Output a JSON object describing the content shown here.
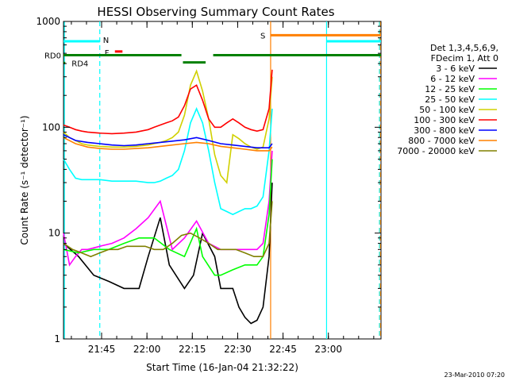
{
  "chart_data": {
    "type": "line",
    "title": "HESSI Observing Summary Count Rates",
    "xlabel": "Start Time (16-Jan-04 21:32:22)",
    "ylabel": "Count Rate (s⁻¹ detector⁻¹)",
    "yscale": "log",
    "ylim": [
      1,
      1000
    ],
    "xlim_minutes_after_21:32:22": [
      0,
      105
    ],
    "x_ticks": [
      {
        "label": "21:45",
        "t": 12.6
      },
      {
        "label": "22:00",
        "t": 27.6
      },
      {
        "label": "22:15",
        "t": 42.6
      },
      {
        "label": "22:30",
        "t": 57.6
      },
      {
        "label": "22:45",
        "t": 72.6
      },
      {
        "label": "23:00",
        "t": 87.6
      }
    ],
    "y_ticks": [
      {
        "label": "1",
        "v": 1
      },
      {
        "label": "10",
        "v": 10
      },
      {
        "label": "100",
        "v": 100
      },
      {
        "label": "1000",
        "v": 1000
      }
    ],
    "legend_header": [
      "Det 1,3,4,5,6,9,",
      "FDecim 1, Att 0"
    ],
    "legend_position": "right",
    "series": [
      {
        "name": "3 - 6 keV",
        "color": "#000000",
        "x": [
          0,
          5,
          10,
          15,
          20,
          25,
          28,
          32,
          35,
          40,
          43,
          46,
          50,
          52,
          56,
          58,
          60,
          62,
          64,
          66,
          68,
          69
        ],
        "y": [
          8,
          6,
          4,
          3.5,
          3,
          3,
          6,
          14,
          5,
          3,
          4,
          10,
          6,
          3,
          3,
          2,
          1.6,
          1.4,
          1.5,
          2,
          6,
          30
        ]
      },
      {
        "name": "6 - 12 keV",
        "color": "#ff00ff",
        "x": [
          0,
          2,
          4,
          6,
          8,
          12,
          16,
          20,
          24,
          28,
          32,
          36,
          40,
          44,
          48,
          52,
          56,
          60,
          64,
          66,
          68,
          69
        ],
        "y": [
          10,
          5,
          6,
          7,
          7,
          7.5,
          8,
          9,
          11,
          14,
          20,
          7,
          9,
          13,
          8,
          7,
          7,
          7,
          7,
          8,
          20,
          60
        ]
      },
      {
        "name": "12 - 25 keV",
        "color": "#00ff00",
        "x": [
          0,
          5,
          10,
          15,
          20,
          25,
          30,
          35,
          40,
          44,
          46,
          50,
          52,
          56,
          60,
          64,
          66,
          68,
          69
        ],
        "y": [
          7,
          6.5,
          7,
          7,
          8,
          9,
          9,
          7,
          6,
          11,
          6,
          4,
          4,
          4.5,
          5,
          5,
          6,
          15,
          50
        ]
      },
      {
        "name": "25 - 50 keV",
        "color": "#00ffff",
        "x": [
          0,
          2,
          4,
          6,
          8,
          12,
          16,
          20,
          24,
          28,
          30,
          32,
          34,
          36,
          38,
          40,
          42,
          44,
          46,
          48,
          50,
          52,
          54,
          56,
          58,
          60,
          62,
          64,
          66,
          68,
          69
        ],
        "y": [
          50,
          40,
          33,
          32,
          32,
          32,
          31,
          31,
          31,
          30,
          30,
          31,
          33,
          35,
          40,
          60,
          110,
          150,
          110,
          60,
          30,
          17,
          16,
          15,
          16,
          17,
          17,
          18,
          22,
          60,
          150
        ]
      },
      {
        "name": "50 - 100 keV",
        "color": "#d0d000",
        "x": [
          0,
          2,
          4,
          6,
          8,
          12,
          16,
          20,
          24,
          28,
          30,
          32,
          34,
          36,
          38,
          40,
          42,
          44,
          46,
          48,
          50,
          52,
          54,
          56,
          58,
          60,
          62,
          64,
          66,
          68,
          69
        ],
        "y": [
          90,
          80,
          75,
          70,
          68,
          66,
          65,
          65,
          66,
          68,
          70,
          72,
          75,
          80,
          90,
          130,
          250,
          340,
          220,
          120,
          55,
          35,
          30,
          85,
          78,
          70,
          65,
          62,
          65,
          120,
          300
        ]
      },
      {
        "name": "100 - 300 keV",
        "color": "#ff0000",
        "x": [
          0,
          2,
          4,
          6,
          8,
          12,
          16,
          20,
          24,
          28,
          30,
          32,
          34,
          36,
          38,
          40,
          42,
          44,
          46,
          48,
          50,
          52,
          54,
          56,
          58,
          60,
          62,
          64,
          66,
          68,
          69
        ],
        "y": [
          105,
          100,
          95,
          92,
          90,
          88,
          87,
          88,
          90,
          95,
          100,
          105,
          110,
          115,
          125,
          160,
          230,
          250,
          180,
          120,
          100,
          100,
          110,
          120,
          110,
          100,
          95,
          92,
          95,
          150,
          350
        ]
      },
      {
        "name": "300 - 800 keV",
        "color": "#0000ff",
        "x": [
          0,
          4,
          8,
          12,
          16,
          20,
          24,
          28,
          32,
          36,
          40,
          44,
          48,
          52,
          56,
          60,
          64,
          66,
          68,
          69
        ],
        "y": [
          85,
          75,
          72,
          70,
          68,
          67,
          68,
          70,
          72,
          74,
          76,
          80,
          75,
          70,
          68,
          66,
          64,
          64,
          64,
          70
        ]
      },
      {
        "name": "800 - 7000 keV",
        "color": "#ff8000",
        "x": [
          0,
          4,
          8,
          12,
          16,
          20,
          24,
          28,
          32,
          36,
          40,
          44,
          48,
          52,
          56,
          60,
          64,
          66,
          68,
          69
        ],
        "y": [
          80,
          70,
          65,
          63,
          62,
          62,
          63,
          64,
          66,
          68,
          70,
          72,
          70,
          66,
          64,
          62,
          60,
          60,
          60,
          65
        ]
      },
      {
        "name": "7000 - 20000 keV",
        "color": "#808000",
        "x": [
          0,
          3,
          6,
          9,
          12,
          15,
          18,
          21,
          24,
          27,
          30,
          33,
          36,
          39,
          42,
          45,
          48,
          51,
          54,
          57,
          60,
          63,
          66,
          68,
          69
        ],
        "y": [
          8,
          7,
          6.5,
          6,
          6.5,
          7,
          7,
          7.5,
          7.5,
          7.5,
          7,
          7,
          8,
          9.5,
          10,
          9,
          8,
          7,
          7,
          7,
          6.5,
          6,
          6,
          8,
          20
        ]
      }
    ],
    "annotations": [
      {
        "label": "N",
        "color": "#00ffff",
        "x": [
          0,
          12
        ],
        "y": 650
      },
      {
        "label": "F",
        "color": "#ff0000",
        "x": [
          17,
          19.5
        ],
        "y": 520
      },
      {
        "label": "S",
        "color": "#ff8000",
        "x": [
          68.5,
          105
        ],
        "y": 740
      },
      {
        "label": "",
        "color": "#00ffff",
        "x": [
          87,
          105
        ],
        "y": 650
      },
      {
        "label": "RD0",
        "color": "#008000",
        "x": [
          0,
          39
        ],
        "y": 480
      },
      {
        "label": "",
        "color": "#008000",
        "x": [
          39.5,
          47
        ],
        "y": 410
      },
      {
        "label": "",
        "color": "#008000",
        "x": [
          49.5,
          105
        ],
        "y": 480
      },
      {
        "label": "RD4",
        "color": "#008000",
        "x": [
          0,
          0.6
        ],
        "y": 405
      }
    ],
    "vertical_markers": [
      {
        "color": "#00ffff",
        "t": 0.3,
        "style": "solid"
      },
      {
        "color": "#00ffff",
        "t": 12,
        "style": "dashed"
      },
      {
        "color": "#ff8000",
        "t": 68.5,
        "style": "solid"
      },
      {
        "color": "#00ffff",
        "t": 87,
        "style": "solid"
      },
      {
        "color": "#00ffff",
        "t": 104.5,
        "style": "dashed"
      },
      {
        "color": "#ff8000",
        "t": 104.8,
        "style": "dashed"
      }
    ]
  },
  "footer_date": "23-Mar-2010 07:20"
}
